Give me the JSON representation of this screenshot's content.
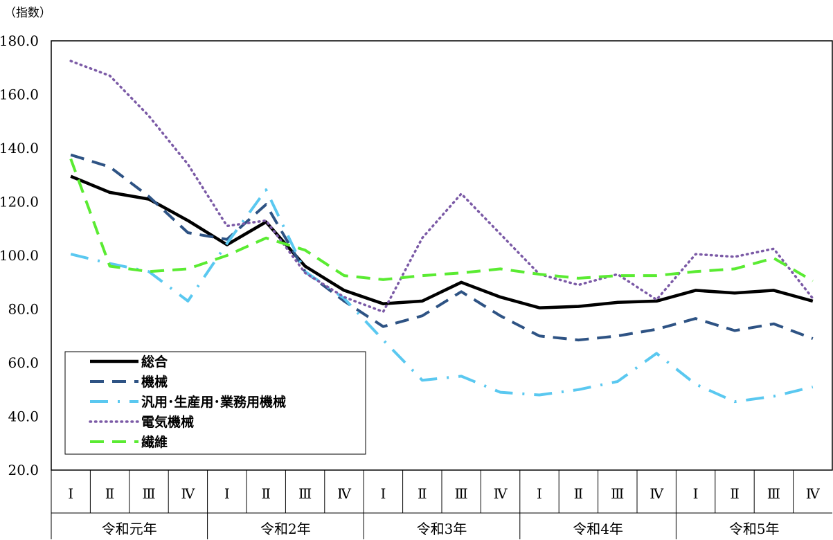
{
  "chart_data": {
    "type": "line",
    "title": "",
    "unit_label": "（指数）",
    "ylim": [
      20,
      180
    ],
    "yticks": [
      "20.0",
      "40.0",
      "60.0",
      "80.0",
      "100.0",
      "120.0",
      "140.0",
      "160.0",
      "180.0"
    ],
    "quarters": [
      "Ⅰ",
      "Ⅱ",
      "Ⅲ",
      "Ⅳ",
      "Ⅰ",
      "Ⅱ",
      "Ⅲ",
      "Ⅳ",
      "Ⅰ",
      "Ⅱ",
      "Ⅲ",
      "Ⅳ",
      "Ⅰ",
      "Ⅱ",
      "Ⅲ",
      "Ⅳ",
      "Ⅰ",
      "Ⅱ",
      "Ⅲ",
      "Ⅳ"
    ],
    "years": [
      "令和元年",
      "令和2年",
      "令和3年",
      "令和4年",
      "令和5年"
    ],
    "grid": false,
    "legend_position": "bottom-left",
    "series": [
      {
        "name": "総合",
        "color": "#000000",
        "style": "solid",
        "values": [
          129.5,
          123.5,
          121.0,
          113.0,
          104.0,
          112.5,
          96.0,
          87.0,
          82.0,
          83.0,
          90.0,
          84.5,
          80.5,
          81.0,
          82.5,
          83.0,
          87.0,
          86.0,
          87.0,
          83.0
        ]
      },
      {
        "name": "機械",
        "color": "#2e5384",
        "style": "dash",
        "values": [
          137.5,
          133.0,
          122.0,
          108.5,
          106.0,
          119.0,
          94.0,
          83.0,
          73.5,
          77.5,
          86.5,
          77.5,
          70.0,
          68.5,
          70.0,
          72.5,
          76.5,
          72.0,
          74.5,
          69.0
        ]
      },
      {
        "name": "汎用･生産用･業務用機械",
        "color": "#5ac8f0",
        "style": "dashdot",
        "values": [
          100.5,
          97.0,
          94.0,
          83.0,
          104.5,
          124.5,
          94.0,
          84.0,
          68.5,
          53.5,
          55.0,
          49.0,
          48.0,
          50.0,
          53.0,
          63.5,
          52.0,
          45.5,
          47.5,
          51.0
        ]
      },
      {
        "name": "電気機械",
        "color": "#7b5aa6",
        "style": "dot",
        "values": [
          172.5,
          167.0,
          152.0,
          134.0,
          111.0,
          113.0,
          93.5,
          84.5,
          79.0,
          106.5,
          123.0,
          108.0,
          93.0,
          89.0,
          93.0,
          83.5,
          100.5,
          99.5,
          102.5,
          84.0
        ]
      },
      {
        "name": "繊維",
        "color": "#5aeb32",
        "style": "dash",
        "values": [
          136.0,
          96.0,
          94.0,
          95.0,
          100.0,
          106.5,
          102.0,
          92.5,
          91.0,
          92.5,
          93.5,
          95.0,
          93.0,
          91.5,
          92.5,
          92.5,
          94.0,
          95.0,
          99.0,
          90.5
        ]
      }
    ]
  }
}
